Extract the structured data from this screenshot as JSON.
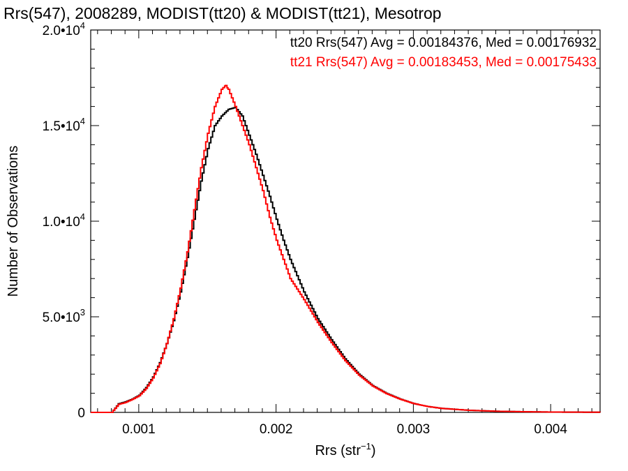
{
  "chart_data": {
    "type": "line",
    "title": "Rrs(547), 2008289, MODIST(tt20) & MODIST(tt21), Mesotrop",
    "xlabel": {
      "main": "Rrs (str",
      "sup": "−1",
      "tail": ")"
    },
    "ylabel": "Number of Observations",
    "xlim": [
      0.00065,
      0.00436
    ],
    "ylim": [
      0,
      20000
    ],
    "xticks": [
      {
        "value": 0.001,
        "label": "0.001"
      },
      {
        "value": 0.002,
        "label": "0.002"
      },
      {
        "value": 0.003,
        "label": "0.003"
      },
      {
        "value": 0.004,
        "label": "0.004"
      }
    ],
    "yticks": [
      {
        "value": 0,
        "base": "0",
        "exp": ""
      },
      {
        "value": 5000,
        "base": "5.0•10",
        "exp": "3"
      },
      {
        "value": 10000,
        "base": "1.0•10",
        "exp": "4"
      },
      {
        "value": 15000,
        "base": "1.5•10",
        "exp": "4"
      },
      {
        "value": 20000,
        "base": "2.0•10",
        "exp": "4"
      }
    ],
    "grid": false,
    "legend_position": "top-right",
    "series": [
      {
        "name": "tt20",
        "legend": "tt20 Rrs(547) Avg = 0.00184376, Med = 0.00176932",
        "color": "#000000",
        "x": [
          0.00065,
          0.0008,
          0.00085,
          0.0009,
          0.00095,
          0.001,
          0.00105,
          0.0011,
          0.00115,
          0.0012,
          0.00125,
          0.0013,
          0.00135,
          0.0014,
          0.00145,
          0.0015,
          0.00155,
          0.0016,
          0.00165,
          0.0017,
          0.00175,
          0.0018,
          0.00185,
          0.0019,
          0.00195,
          0.002,
          0.00205,
          0.0021,
          0.0022,
          0.0023,
          0.0024,
          0.0025,
          0.0026,
          0.0027,
          0.0028,
          0.0029,
          0.003,
          0.0031,
          0.0032,
          0.0034,
          0.0036,
          0.0038,
          0.004,
          0.00436
        ],
        "y": [
          0,
          0,
          450,
          550,
          700,
          900,
          1300,
          1850,
          2600,
          3600,
          4800,
          6300,
          8100,
          10100,
          12100,
          13800,
          15000,
          15500,
          15850,
          15950,
          15500,
          14500,
          13500,
          12400,
          11300,
          10100,
          9000,
          8000,
          6300,
          4900,
          3800,
          2800,
          2000,
          1400,
          1000,
          700,
          460,
          310,
          210,
          110,
          60,
          35,
          18,
          8
        ]
      },
      {
        "name": "tt21",
        "legend": "tt21 Rrs(547) Avg = 0.00183453, Med = 0.00175433",
        "color": "#ff0000",
        "x": [
          0.00065,
          0.0008,
          0.00085,
          0.0009,
          0.00095,
          0.001,
          0.00105,
          0.0011,
          0.00115,
          0.0012,
          0.00125,
          0.0013,
          0.00135,
          0.0014,
          0.00145,
          0.0015,
          0.00155,
          0.0016,
          0.00163,
          0.00165,
          0.0017,
          0.00175,
          0.0018,
          0.00185,
          0.0019,
          0.00195,
          0.002,
          0.00205,
          0.0021,
          0.0022,
          0.0023,
          0.0024,
          0.0025,
          0.0026,
          0.0027,
          0.0028,
          0.0029,
          0.003,
          0.0031,
          0.0032,
          0.0034,
          0.0036,
          0.0038,
          0.004,
          0.00436
        ],
        "y": [
          0,
          0,
          420,
          520,
          680,
          870,
          1250,
          1800,
          2550,
          3600,
          4900,
          6500,
          8400,
          10600,
          12800,
          14600,
          16000,
          16900,
          17100,
          16900,
          16000,
          15000,
          14000,
          12800,
          11600,
          10200,
          9000,
          8000,
          7000,
          5900,
          4700,
          3650,
          2700,
          1950,
          1380,
          980,
          690,
          460,
          310,
          210,
          110,
          60,
          35,
          18,
          8
        ]
      }
    ]
  }
}
